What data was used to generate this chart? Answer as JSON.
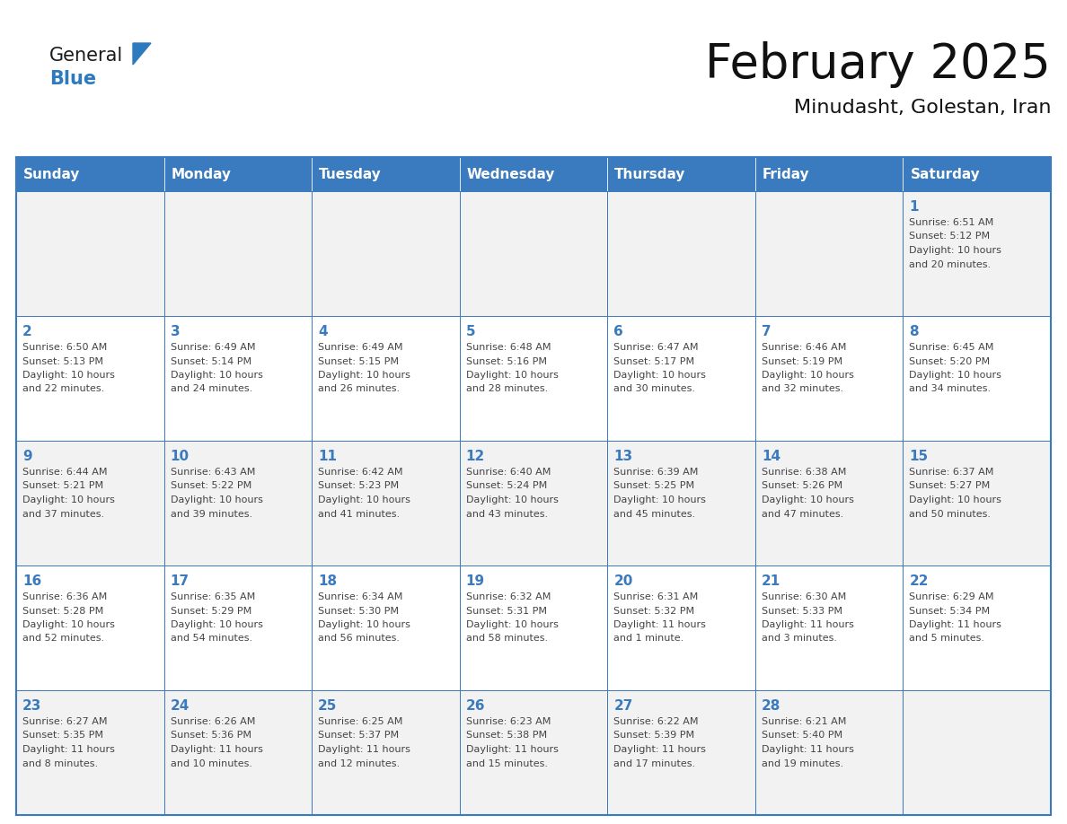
{
  "title": "February 2025",
  "subtitle": "Minudasht, Golestan, Iran",
  "header_color": "#3a7abf",
  "header_text_color": "#ffffff",
  "day_names": [
    "Sunday",
    "Monday",
    "Tuesday",
    "Wednesday",
    "Thursday",
    "Friday",
    "Saturday"
  ],
  "background_color": "#ffffff",
  "cell_bg_even": "#f2f2f2",
  "cell_bg_odd": "#ffffff",
  "border_color": "#3a7abf",
  "text_color": "#444444",
  "date_color": "#3a7abf",
  "logo_general_color": "#1a1a1a",
  "logo_blue_color": "#2e7abf",
  "logo_triangle_color": "#2e7abf",
  "title_fontsize": 38,
  "subtitle_fontsize": 16,
  "header_fontsize": 11,
  "day_num_fontsize": 11,
  "info_fontsize": 8,
  "calendar_data": [
    [
      null,
      null,
      null,
      null,
      null,
      null,
      {
        "day": "1",
        "sunrise": "6:51 AM",
        "sunset": "5:12 PM",
        "daylight_line1": "Daylight: 10 hours",
        "daylight_line2": "and 20 minutes."
      }
    ],
    [
      {
        "day": "2",
        "sunrise": "6:50 AM",
        "sunset": "5:13 PM",
        "daylight_line1": "Daylight: 10 hours",
        "daylight_line2": "and 22 minutes."
      },
      {
        "day": "3",
        "sunrise": "6:49 AM",
        "sunset": "5:14 PM",
        "daylight_line1": "Daylight: 10 hours",
        "daylight_line2": "and 24 minutes."
      },
      {
        "day": "4",
        "sunrise": "6:49 AM",
        "sunset": "5:15 PM",
        "daylight_line1": "Daylight: 10 hours",
        "daylight_line2": "and 26 minutes."
      },
      {
        "day": "5",
        "sunrise": "6:48 AM",
        "sunset": "5:16 PM",
        "daylight_line1": "Daylight: 10 hours",
        "daylight_line2": "and 28 minutes."
      },
      {
        "day": "6",
        "sunrise": "6:47 AM",
        "sunset": "5:17 PM",
        "daylight_line1": "Daylight: 10 hours",
        "daylight_line2": "and 30 minutes."
      },
      {
        "day": "7",
        "sunrise": "6:46 AM",
        "sunset": "5:19 PM",
        "daylight_line1": "Daylight: 10 hours",
        "daylight_line2": "and 32 minutes."
      },
      {
        "day": "8",
        "sunrise": "6:45 AM",
        "sunset": "5:20 PM",
        "daylight_line1": "Daylight: 10 hours",
        "daylight_line2": "and 34 minutes."
      }
    ],
    [
      {
        "day": "9",
        "sunrise": "6:44 AM",
        "sunset": "5:21 PM",
        "daylight_line1": "Daylight: 10 hours",
        "daylight_line2": "and 37 minutes."
      },
      {
        "day": "10",
        "sunrise": "6:43 AM",
        "sunset": "5:22 PM",
        "daylight_line1": "Daylight: 10 hours",
        "daylight_line2": "and 39 minutes."
      },
      {
        "day": "11",
        "sunrise": "6:42 AM",
        "sunset": "5:23 PM",
        "daylight_line1": "Daylight: 10 hours",
        "daylight_line2": "and 41 minutes."
      },
      {
        "day": "12",
        "sunrise": "6:40 AM",
        "sunset": "5:24 PM",
        "daylight_line1": "Daylight: 10 hours",
        "daylight_line2": "and 43 minutes."
      },
      {
        "day": "13",
        "sunrise": "6:39 AM",
        "sunset": "5:25 PM",
        "daylight_line1": "Daylight: 10 hours",
        "daylight_line2": "and 45 minutes."
      },
      {
        "day": "14",
        "sunrise": "6:38 AM",
        "sunset": "5:26 PM",
        "daylight_line1": "Daylight: 10 hours",
        "daylight_line2": "and 47 minutes."
      },
      {
        "day": "15",
        "sunrise": "6:37 AM",
        "sunset": "5:27 PM",
        "daylight_line1": "Daylight: 10 hours",
        "daylight_line2": "and 50 minutes."
      }
    ],
    [
      {
        "day": "16",
        "sunrise": "6:36 AM",
        "sunset": "5:28 PM",
        "daylight_line1": "Daylight: 10 hours",
        "daylight_line2": "and 52 minutes."
      },
      {
        "day": "17",
        "sunrise": "6:35 AM",
        "sunset": "5:29 PM",
        "daylight_line1": "Daylight: 10 hours",
        "daylight_line2": "and 54 minutes."
      },
      {
        "day": "18",
        "sunrise": "6:34 AM",
        "sunset": "5:30 PM",
        "daylight_line1": "Daylight: 10 hours",
        "daylight_line2": "and 56 minutes."
      },
      {
        "day": "19",
        "sunrise": "6:32 AM",
        "sunset": "5:31 PM",
        "daylight_line1": "Daylight: 10 hours",
        "daylight_line2": "and 58 minutes."
      },
      {
        "day": "20",
        "sunrise": "6:31 AM",
        "sunset": "5:32 PM",
        "daylight_line1": "Daylight: 11 hours",
        "daylight_line2": "and 1 minute."
      },
      {
        "day": "21",
        "sunrise": "6:30 AM",
        "sunset": "5:33 PM",
        "daylight_line1": "Daylight: 11 hours",
        "daylight_line2": "and 3 minutes."
      },
      {
        "day": "22",
        "sunrise": "6:29 AM",
        "sunset": "5:34 PM",
        "daylight_line1": "Daylight: 11 hours",
        "daylight_line2": "and 5 minutes."
      }
    ],
    [
      {
        "day": "23",
        "sunrise": "6:27 AM",
        "sunset": "5:35 PM",
        "daylight_line1": "Daylight: 11 hours",
        "daylight_line2": "and 8 minutes."
      },
      {
        "day": "24",
        "sunrise": "6:26 AM",
        "sunset": "5:36 PM",
        "daylight_line1": "Daylight: 11 hours",
        "daylight_line2": "and 10 minutes."
      },
      {
        "day": "25",
        "sunrise": "6:25 AM",
        "sunset": "5:37 PM",
        "daylight_line1": "Daylight: 11 hours",
        "daylight_line2": "and 12 minutes."
      },
      {
        "day": "26",
        "sunrise": "6:23 AM",
        "sunset": "5:38 PM",
        "daylight_line1": "Daylight: 11 hours",
        "daylight_line2": "and 15 minutes."
      },
      {
        "day": "27",
        "sunrise": "6:22 AM",
        "sunset": "5:39 PM",
        "daylight_line1": "Daylight: 11 hours",
        "daylight_line2": "and 17 minutes."
      },
      {
        "day": "28",
        "sunrise": "6:21 AM",
        "sunset": "5:40 PM",
        "daylight_line1": "Daylight: 11 hours",
        "daylight_line2": "and 19 minutes."
      },
      null
    ]
  ]
}
